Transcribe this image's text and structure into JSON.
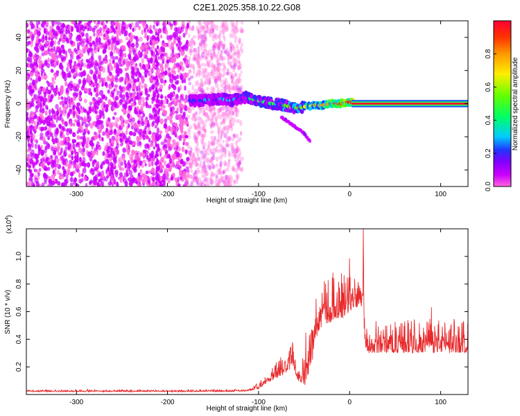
{
  "title": "C2E1.2025.358.10.22.G08",
  "chart_data": [
    {
      "type": "heatmap",
      "title": "C2E1.2025.358.10.22.G08",
      "xlabel": "Height of straight line (km)",
      "ylabel": "Frequency (Hz)",
      "xlim": [
        -355,
        130
      ],
      "ylim": [
        -50,
        50
      ],
      "x_ticks": [
        -300,
        -200,
        -100,
        0,
        100
      ],
      "y_ticks": [
        -40,
        -20,
        0,
        20,
        40
      ],
      "colorbar": {
        "label": "Normalized spectral amplitude",
        "range": [
          0.0,
          1.0
        ],
        "ticks": [
          0.0,
          0.2,
          0.4,
          0.6,
          0.8
        ],
        "colors": [
          "#ff66dd",
          "#cc00ff",
          "#8000ff",
          "#2233ff",
          "#00ccff",
          "#00ff66",
          "#66ff00",
          "#ffee00",
          "#ff9900",
          "#ff3300",
          "#ff0033"
        ]
      },
      "noise_region_x": [
        -355,
        -118
      ],
      "signal_trace": {
        "x": [
          -175,
          -160,
          -145,
          -130,
          -115,
          -100,
          -85,
          -70,
          -60,
          -50,
          -40,
          -30,
          -20,
          -10,
          0,
          130
        ],
        "freq": [
          2,
          2,
          3,
          2,
          4,
          2,
          0,
          -1,
          -3,
          -2,
          -1,
          -1,
          0,
          0,
          1,
          0
        ],
        "amplitude": [
          0.25,
          0.3,
          0.3,
          0.3,
          0.45,
          0.45,
          0.5,
          0.5,
          0.55,
          0.6,
          0.7,
          0.75,
          0.8,
          0.85,
          0.9,
          0.95
        ]
      },
      "tail_branch": {
        "x": [
          -75,
          -62,
          -50,
          -43
        ],
        "freq": [
          -8,
          -13,
          -18,
          -23
        ]
      }
    },
    {
      "type": "line",
      "xlabel": "Height of straight line (km)",
      "ylabel": "SNR (10 * v/v)",
      "y_scale_label": "(x10",
      "y_scale_exp": "4",
      "y_scale_close": ")",
      "xlim": [
        -355,
        130
      ],
      "ylim": [
        0,
        1.2
      ],
      "x_ticks": [
        -300,
        -200,
        -100,
        0,
        100
      ],
      "y_ticks": [
        0.2,
        0.4,
        0.6,
        0.8,
        1.0
      ],
      "color": "#e8282a",
      "envelope": {
        "x": [
          -355,
          -200,
          -130,
          -112,
          -100,
          -90,
          -80,
          -70,
          -62,
          -57,
          -50,
          -42,
          -35,
          -25,
          -15,
          -5,
          0,
          5,
          12,
          15,
          17,
          20,
          30,
          50,
          70,
          90,
          110,
          130
        ],
        "base": [
          0.02,
          0.02,
          0.02,
          0.025,
          0.04,
          0.08,
          0.12,
          0.15,
          0.2,
          0.1,
          0.05,
          0.2,
          0.45,
          0.5,
          0.55,
          0.55,
          0.6,
          0.62,
          0.65,
          0.6,
          0.35,
          0.3,
          0.3,
          0.3,
          0.3,
          0.3,
          0.3,
          0.3
        ],
        "peak": [
          0.035,
          0.035,
          0.035,
          0.045,
          0.09,
          0.16,
          0.24,
          0.32,
          0.42,
          0.15,
          0.3,
          0.7,
          0.75,
          0.85,
          0.9,
          0.95,
          0.9,
          0.85,
          0.88,
          1.2,
          0.45,
          0.45,
          0.5,
          0.53,
          0.55,
          0.55,
          0.55,
          0.55
        ]
      }
    }
  ]
}
